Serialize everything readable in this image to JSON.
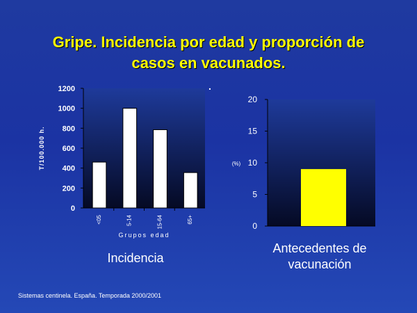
{
  "title_line1": "Gripe. Incidencia por edad y proporción de",
  "title_line2": "casos en vacunados.",
  "dot": ".",
  "caption_left": "Incidencia",
  "caption_right_line1": "Antecedentes de",
  "caption_right_line2": "vacunación",
  "footer": "Sistemas centinela. España. Temporada 2000/2001",
  "colors": {
    "background": "#1f3aa0",
    "title": "#ffff00",
    "bar_left": "#ffffff",
    "bar_right": "#ffff00"
  },
  "chart_data": [
    {
      "type": "bar",
      "categories": [
        "<05",
        "5-14",
        "15-64",
        "65+"
      ],
      "values": [
        460,
        1000,
        785,
        355
      ],
      "xlabel": "Grupos edad",
      "ylabel": "T/100.000 h.",
      "ylim": [
        0,
        1200
      ],
      "yticks": [
        0,
        200,
        400,
        600,
        800,
        1000,
        1200
      ],
      "grid": false
    },
    {
      "type": "bar",
      "categories": [
        ""
      ],
      "values": [
        9
      ],
      "ylabel": "(%)",
      "ylim": [
        0,
        20
      ],
      "yticks": [
        0,
        5,
        10,
        15,
        20
      ],
      "grid": false
    }
  ]
}
